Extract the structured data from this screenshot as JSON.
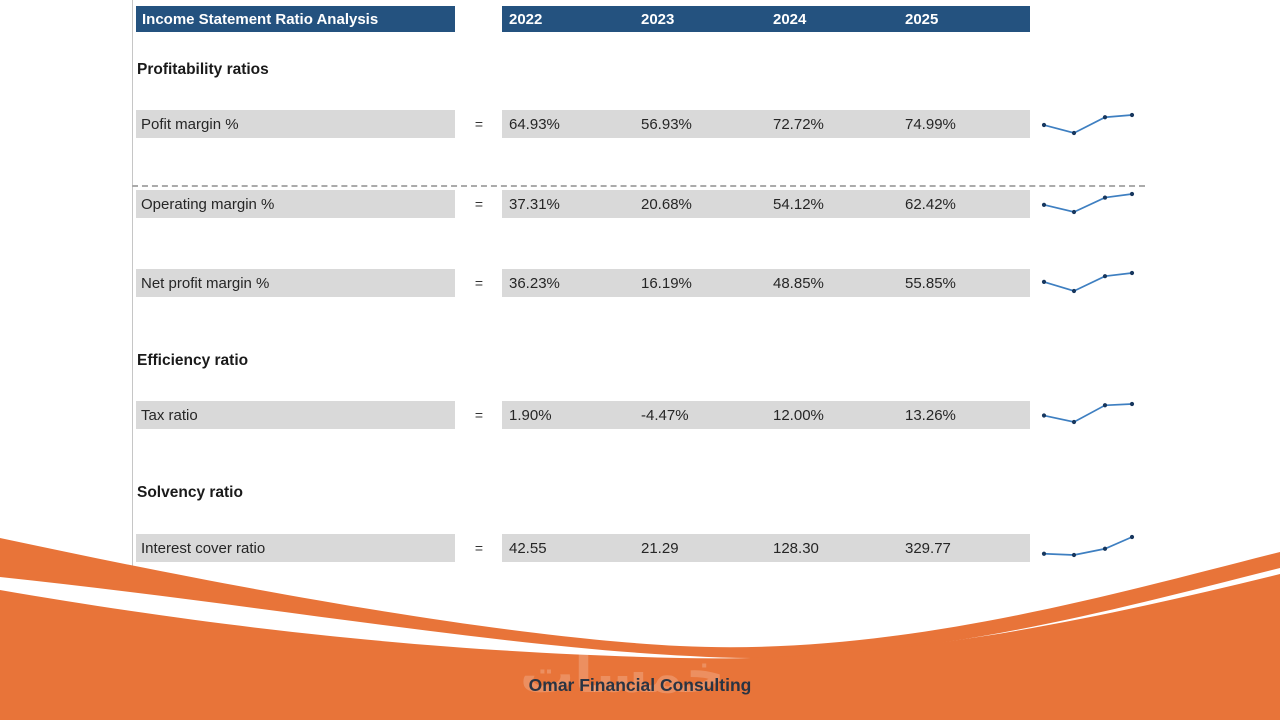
{
  "header": {
    "title": "Income Statement Ratio Analysis",
    "years": [
      "2022",
      "2023",
      "2024",
      "2025"
    ]
  },
  "sections": [
    {
      "heading": "Profitability ratios"
    },
    {
      "heading": "Efficiency ratio"
    },
    {
      "heading": "Solvency ratio"
    }
  ],
  "rows": [
    {
      "label": "Pofit margin %",
      "operator": "=",
      "display": [
        "64.93%",
        "56.93%",
        "72.72%",
        "74.99%"
      ],
      "series": [
        64.93,
        56.93,
        72.72,
        74.99
      ]
    },
    {
      "label": "Operating margin %",
      "operator": "=",
      "display": [
        "37.31%",
        "20.68%",
        "54.12%",
        "62.42%"
      ],
      "series": [
        37.31,
        20.68,
        54.12,
        62.42
      ]
    },
    {
      "label": "Net profit margin %",
      "operator": "=",
      "display": [
        "36.23%",
        "16.19%",
        "48.85%",
        "55.85%"
      ],
      "series": [
        36.23,
        16.19,
        48.85,
        55.85
      ]
    },
    {
      "label": "Tax ratio",
      "operator": "=",
      "display": [
        "1.90%",
        "-4.47%",
        "12.00%",
        "13.26%"
      ],
      "series": [
        1.9,
        -4.47,
        12.0,
        13.26
      ]
    },
    {
      "label": "Interest cover ratio",
      "operator": "=",
      "display": [
        "42.55",
        "21.29",
        "128.30",
        "329.77"
      ],
      "series": [
        42.55,
        21.29,
        128.3,
        329.77
      ]
    }
  ],
  "footer": {
    "brand": "Omar Financial Consulting",
    "watermark": "خمسات"
  },
  "colors": {
    "header_bg": "#24527F",
    "row_bg": "#D9D9D9",
    "accent_orange": "#E87439",
    "spark_line": "#3E7FC1",
    "spark_marker": "#17375E",
    "brand_text": "#2A3443"
  },
  "chart_data": [
    {
      "type": "line",
      "name": "Pofit margin % sparkline",
      "x": [
        "2022",
        "2023",
        "2024",
        "2025"
      ],
      "values": [
        64.93,
        56.93,
        72.72,
        74.99
      ]
    },
    {
      "type": "line",
      "name": "Operating margin % sparkline",
      "x": [
        "2022",
        "2023",
        "2024",
        "2025"
      ],
      "values": [
        37.31,
        20.68,
        54.12,
        62.42
      ]
    },
    {
      "type": "line",
      "name": "Net profit margin % sparkline",
      "x": [
        "2022",
        "2023",
        "2024",
        "2025"
      ],
      "values": [
        36.23,
        16.19,
        48.85,
        55.85
      ]
    },
    {
      "type": "line",
      "name": "Tax ratio sparkline",
      "x": [
        "2022",
        "2023",
        "2024",
        "2025"
      ],
      "values": [
        1.9,
        -4.47,
        12.0,
        13.26
      ]
    },
    {
      "type": "line",
      "name": "Interest cover ratio sparkline",
      "x": [
        "2022",
        "2023",
        "2024",
        "2025"
      ],
      "values": [
        42.55,
        21.29,
        128.3,
        329.77
      ]
    }
  ]
}
